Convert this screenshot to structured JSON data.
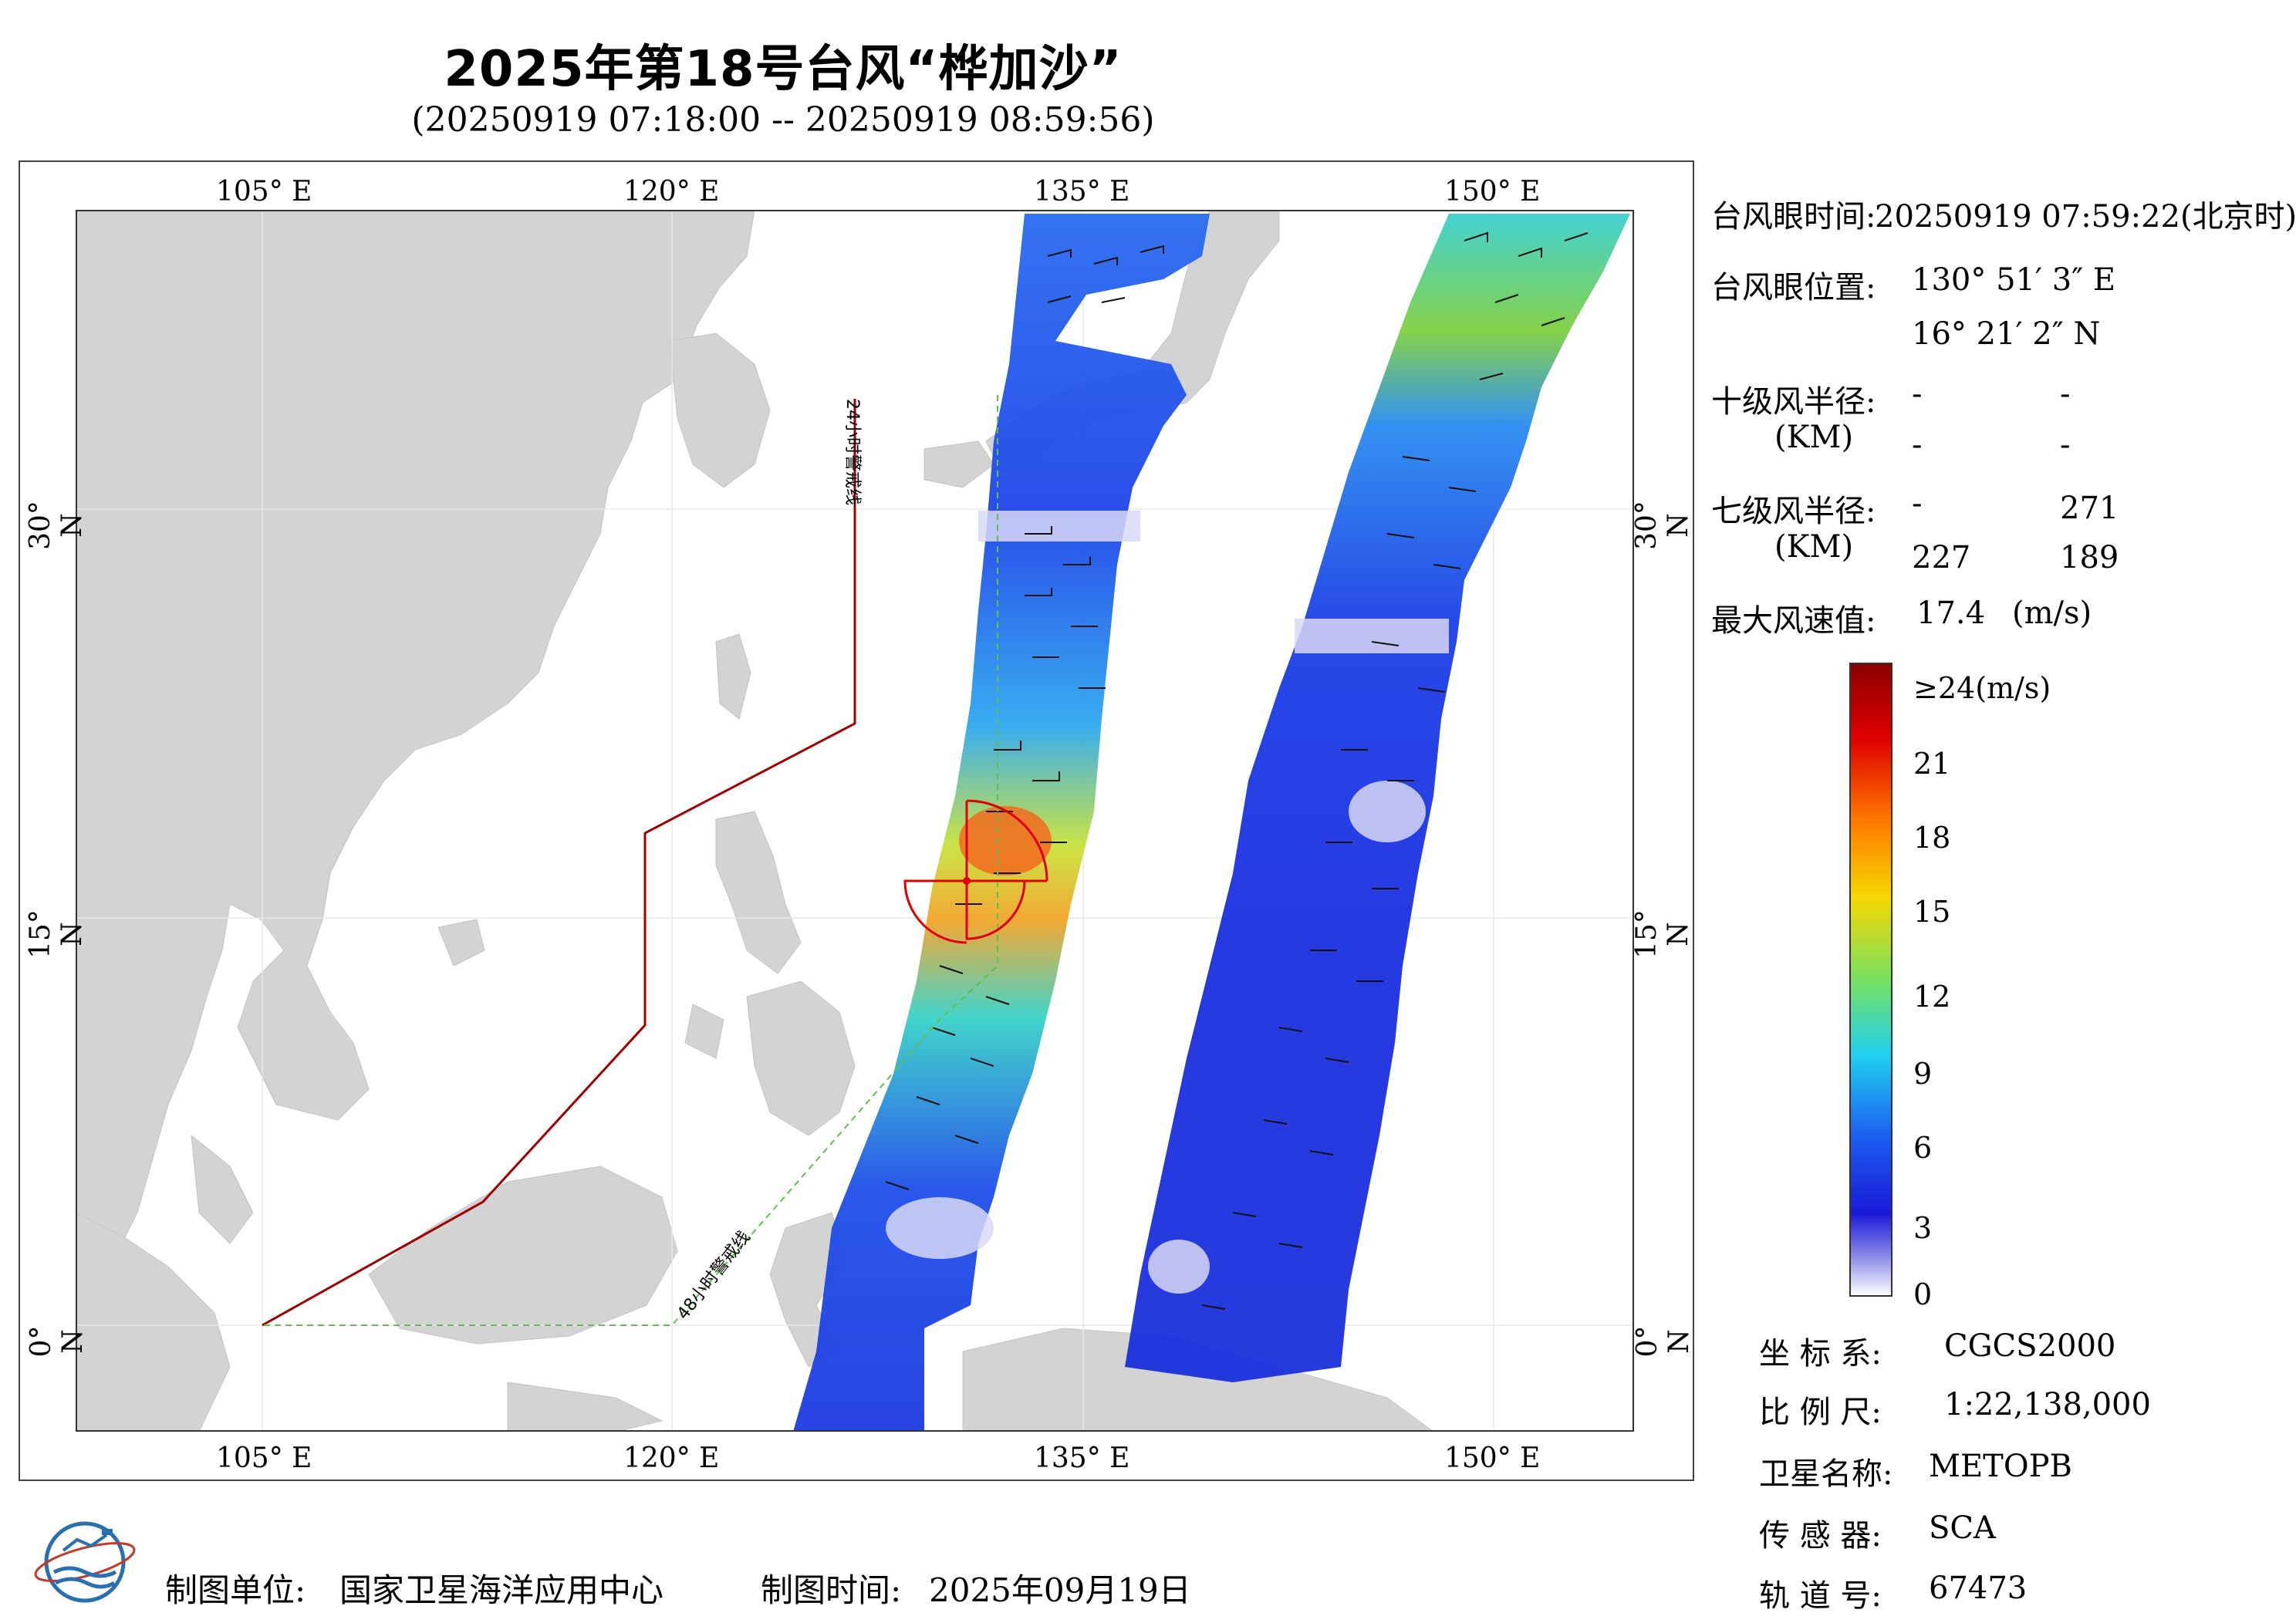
{
  "header": {
    "title": "2025年第18号台风“桦加沙”",
    "subtitle": "(20250919 07:18:00 -- 20250919 08:59:56)"
  },
  "map": {
    "lon_labels_top": [
      "105° E",
      "120° E",
      "135° E",
      "150° E"
    ],
    "lon_labels_bottom": [
      "105° E",
      "120° E",
      "135° E",
      "150° E"
    ],
    "lat_labels_left": [
      "30° N",
      "15° N",
      "0° N"
    ],
    "lat_labels_right": [
      "30° N",
      "15° N",
      "0° N"
    ],
    "warning_24h_label": "24小时警戒线",
    "warning_48h_label": "48小时警戒线",
    "colors": {
      "land": "#d3d3d3",
      "sea": "#ffffff",
      "warning_24h": "#a00000",
      "warning_48h": "#4caf50",
      "typhoon_eye": "#e00000"
    }
  },
  "info": {
    "eye_time_label": "台风眼时间:",
    "eye_time_value": "20250919 07:59:22(北京时)",
    "eye_pos_label": "台风眼位置:",
    "eye_lon": "130° 51′ 3″ E",
    "eye_lat": "16° 21′ 2″ N",
    "r10_label": "十级风半径:",
    "r10_unit": "(KM)",
    "r10_values": [
      "-",
      "-",
      "-",
      "-"
    ],
    "r7_label": "七级风半径:",
    "r7_unit": "(KM)",
    "r7_values": [
      "-",
      "271",
      "227",
      "189"
    ],
    "max_wind_label": "最大风速值:",
    "max_wind_value": "17.4",
    "max_wind_unit": "(m/s)"
  },
  "colorbar": {
    "labels": [
      "≥24(m/s)",
      "21",
      "18",
      "15",
      "12",
      "9",
      "6",
      "3",
      "0"
    ]
  },
  "meta": {
    "crs_label": "坐 标 系:",
    "crs_value": "CGCS2000",
    "scale_label": "比 例 尺:",
    "scale_value": "1:22,138,000",
    "satellite_label": "卫星名称:",
    "satellite_value": "METOPB",
    "sensor_label": "传 感 器:",
    "sensor_value": "SCA",
    "orbit_label": "轨 道 号:",
    "orbit_value": "67473"
  },
  "footer": {
    "maker_label": "制图单位:",
    "maker_value": "国家卫星海洋应用中心",
    "date_label": "制图时间:",
    "date_value": "2025年09月19日"
  }
}
